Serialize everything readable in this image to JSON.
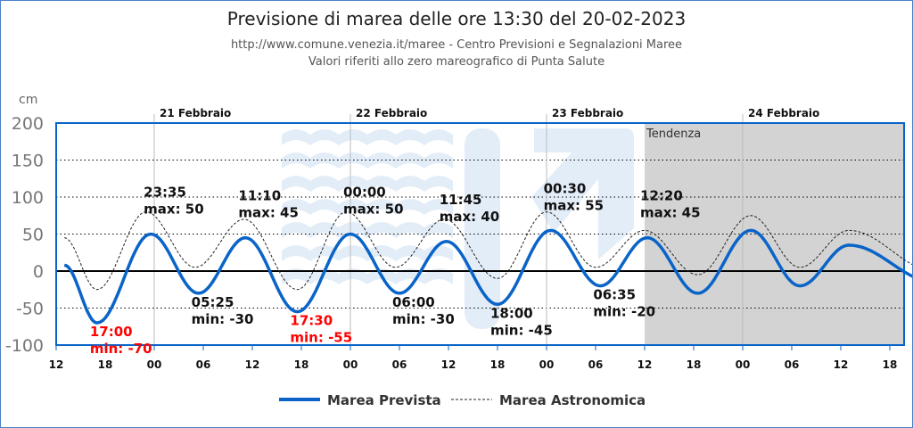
{
  "header": {
    "title": "Previsione di marea delle ore 13:30 del 20-02-2023",
    "source": "http://www.comune.venezia.it/maree - Centro Previsioni e Segnalazioni Maree",
    "reference": "Valori riferiti allo zero mareografico di Punta Salute"
  },
  "chart_data": {
    "type": "line",
    "ylabel": "cm",
    "ylim": [
      -100,
      200
    ],
    "yticks": [
      200,
      150,
      100,
      50,
      0,
      -50,
      -100
    ],
    "x_unit": "hours from 20 Feb 12:00",
    "xlim": [
      0,
      110
    ],
    "xticks": [
      "12",
      "18",
      "00",
      "06",
      "12",
      "18",
      "00",
      "06",
      "12",
      "18",
      "00",
      "06",
      "12",
      "18",
      "00",
      "06",
      "12",
      "18"
    ],
    "days": [
      {
        "label": "21 Febbraio",
        "h": 12
      },
      {
        "label": "22 Febbraio",
        "h": 36
      },
      {
        "label": "23 Febbraio",
        "h": 60
      },
      {
        "label": "24 Febbraio",
        "h": 84
      }
    ],
    "trend": {
      "label": "Tendenza",
      "from_h": 72
    },
    "legend": [
      "Marea Prevista",
      "Marea Astronomica"
    ],
    "colors": {
      "prevista": "#0a64c8",
      "astronomica": "#222222",
      "alert": "#ff0000",
      "trend_bg": "#d3d3d3"
    },
    "series": [
      {
        "name": "Marea Prevista",
        "points": [
          [
            1,
            8
          ],
          [
            5,
            -70
          ],
          [
            11.58,
            50
          ],
          [
            17.42,
            -30
          ],
          [
            23.17,
            45
          ],
          [
            29.5,
            -55
          ],
          [
            36,
            50
          ],
          [
            42,
            -30
          ],
          [
            47.75,
            40
          ],
          [
            54,
            -45
          ],
          [
            60.5,
            55
          ],
          [
            66.58,
            -20
          ],
          [
            72.33,
            45
          ],
          [
            78.5,
            -30
          ],
          [
            85,
            55
          ],
          [
            91,
            -20
          ],
          [
            97,
            35
          ],
          [
            107.5,
            -15
          ]
        ]
      },
      {
        "name": "Marea Astronomica",
        "points": [
          [
            1,
            45
          ],
          [
            5,
            -25
          ],
          [
            11,
            80
          ],
          [
            17,
            5
          ],
          [
            23,
            70
          ],
          [
            29.5,
            -25
          ],
          [
            35.5,
            80
          ],
          [
            41.5,
            5
          ],
          [
            47.5,
            70
          ],
          [
            54,
            -10
          ],
          [
            60,
            80
          ],
          [
            66,
            5
          ],
          [
            72,
            55
          ],
          [
            78.5,
            -5
          ],
          [
            85,
            75
          ],
          [
            91,
            5
          ],
          [
            97,
            55
          ],
          [
            107.5,
            0
          ]
        ]
      }
    ],
    "annotations": [
      {
        "time": "17:00",
        "text": "min: -70",
        "h": 5,
        "v": -70,
        "type": "min",
        "alert": true
      },
      {
        "time": "23:35",
        "text": "max: 50",
        "h": 11.58,
        "v": 50,
        "type": "max",
        "alert": false
      },
      {
        "time": "05:25",
        "text": "min: -30",
        "h": 17.42,
        "v": -30,
        "type": "min",
        "alert": false
      },
      {
        "time": "11:10",
        "text": "max: 45",
        "h": 23.17,
        "v": 45,
        "type": "max",
        "alert": false
      },
      {
        "time": "17:30",
        "text": "min: -55",
        "h": 29.5,
        "v": -55,
        "type": "min",
        "alert": true
      },
      {
        "time": "00:00",
        "text": "max: 50",
        "h": 36,
        "v": 50,
        "type": "max",
        "alert": false
      },
      {
        "time": "06:00",
        "text": "min: -30",
        "h": 42,
        "v": -30,
        "type": "min",
        "alert": false
      },
      {
        "time": "11:45",
        "text": "max: 40",
        "h": 47.75,
        "v": 40,
        "type": "max",
        "alert": false
      },
      {
        "time": "18:00",
        "text": "min: -45",
        "h": 54,
        "v": -45,
        "type": "min",
        "alert": false
      },
      {
        "time": "00:30",
        "text": "max: 55",
        "h": 60.5,
        "v": 55,
        "type": "max",
        "alert": false
      },
      {
        "time": "06:35",
        "text": "min: -20",
        "h": 66.58,
        "v": -20,
        "type": "min",
        "alert": false
      },
      {
        "time": "12:20",
        "text": "max: 45",
        "h": 72.33,
        "v": 45,
        "type": "max",
        "alert": false
      }
    ]
  }
}
